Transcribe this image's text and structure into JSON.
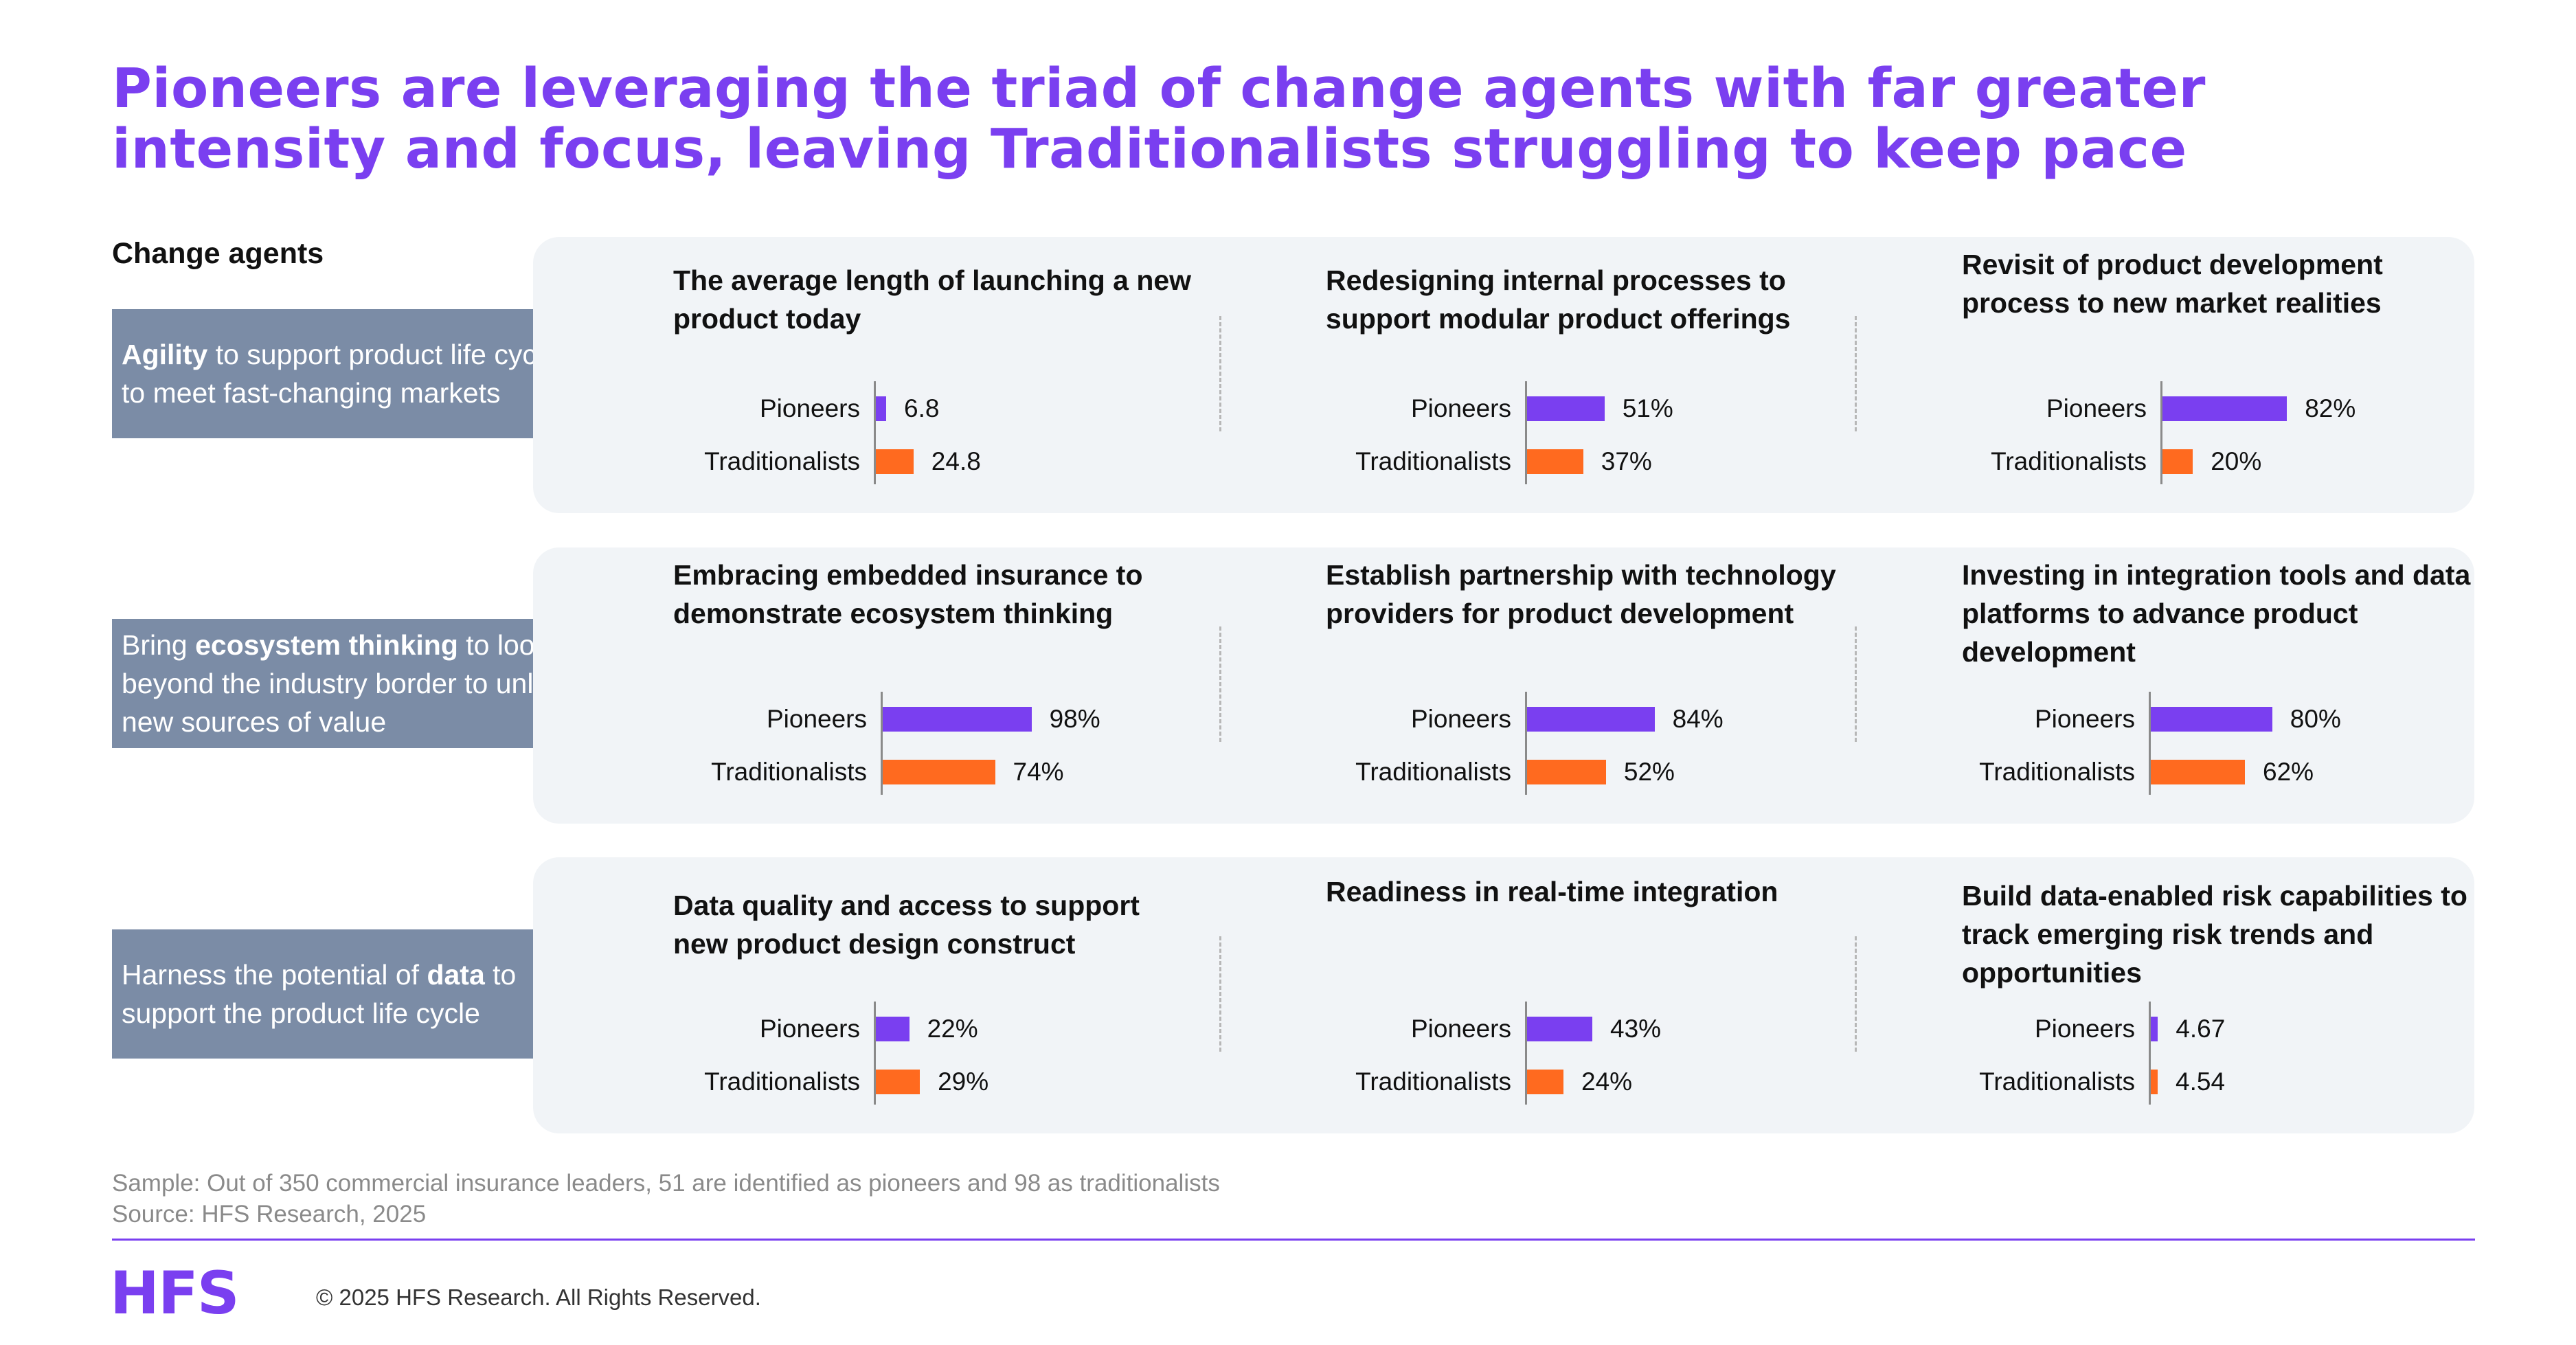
{
  "title": "Pioneers are leveraging the triad of change agents with far greater intensity and focus, leaving Traditionalists struggling to keep pace",
  "agents_heading": "Change agents",
  "colors": {
    "pioneers": "#7a3ff0",
    "traditionalists": "#ff6a1f",
    "accent": "#7a3ff0",
    "agent_box": "#7b8ca6",
    "panel": "#f1f4f7"
  },
  "agents": [
    {
      "bold": "Agility",
      "text": " to support product life cycle to meet fast-changing markets"
    },
    {
      "pre": "Bring ",
      "bold": "ecosystem thinking",
      "text": " to look beyond the industry border to unlock new sources of value"
    },
    {
      "pre": "Harness the potential of ",
      "bold": "data",
      "text": " to support the product life cycle"
    }
  ],
  "row_labels": {
    "pioneers": "Pioneers",
    "traditionalists": "Traditionalists"
  },
  "chart_data": [
    {
      "type": "bar",
      "title": "The average length of launching a new product today",
      "categories": [
        "Pioneers",
        "Traditionalists"
      ],
      "values": [
        6.8,
        24.8
      ],
      "labels": [
        "6.8",
        "24.8"
      ],
      "max": 100
    },
    {
      "type": "bar",
      "title": "Redesigning internal processes to support modular product offerings",
      "categories": [
        "Pioneers",
        "Traditionalists"
      ],
      "values": [
        51,
        37
      ],
      "labels": [
        "51%",
        "37%"
      ],
      "max": 100
    },
    {
      "type": "bar",
      "title": "Revisit of product development process to new market realities",
      "categories": [
        "Pioneers",
        "Traditionalists"
      ],
      "values": [
        82,
        20
      ],
      "labels": [
        "82%",
        "20%"
      ],
      "max": 100
    },
    {
      "type": "bar",
      "title": "Embracing embedded insurance to demonstrate ecosystem thinking",
      "categories": [
        "Pioneers",
        "Traditionalists"
      ],
      "values": [
        98,
        74
      ],
      "labels": [
        "98%",
        "74%"
      ],
      "max": 100
    },
    {
      "type": "bar",
      "title": "Establish partnership with technology providers for product development",
      "categories": [
        "Pioneers",
        "Traditionalists"
      ],
      "values": [
        84,
        52
      ],
      "labels": [
        "84%",
        "52%"
      ],
      "max": 100
    },
    {
      "type": "bar",
      "title": "Investing in integration tools and data platforms to advance product development",
      "categories": [
        "Pioneers",
        "Traditionalists"
      ],
      "values": [
        80,
        62
      ],
      "labels": [
        "80%",
        "62%"
      ],
      "max": 100
    },
    {
      "type": "bar",
      "title": "Data quality and access to support new product design construct",
      "categories": [
        "Pioneers",
        "Traditionalists"
      ],
      "values": [
        22,
        29
      ],
      "labels": [
        "22%",
        "29%"
      ],
      "max": 100
    },
    {
      "type": "bar",
      "title": "Readiness in real-time integration",
      "categories": [
        "Pioneers",
        "Traditionalists"
      ],
      "values": [
        43,
        24
      ],
      "labels": [
        "43%",
        "24%"
      ],
      "max": 100
    },
    {
      "type": "bar",
      "title": "Build data-enabled risk capabilities to track emerging risk trends and opportunities",
      "categories": [
        "Pioneers",
        "Traditionalists"
      ],
      "values": [
        4.67,
        4.54
      ],
      "labels": [
        "4.67",
        "4.54"
      ],
      "max": 100
    }
  ],
  "footnote_sample": "Sample: Out of 350 commercial insurance leaders, 51 are identified as pioneers and 98 as traditionalists",
  "footnote_source": "Source: HFS Research, 2025",
  "logo_text": "HFS",
  "copyright": "© 2025 HFS Research. All Rights Reserved."
}
